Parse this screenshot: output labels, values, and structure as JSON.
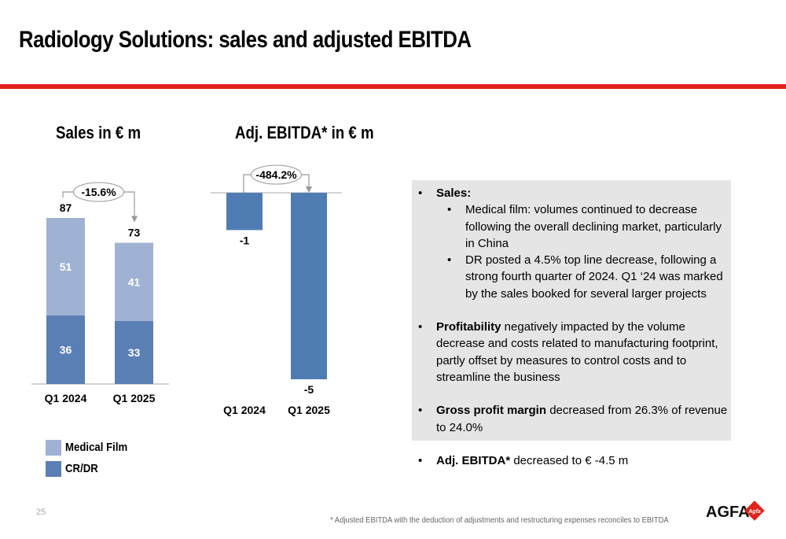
{
  "slide": {
    "title": "Radiology Solutions: sales and adjusted EBITDA",
    "page_number": "25",
    "footnote": "* Adjusted EBITDA with the deduction of adjustments and restructuring expenses reconciles to EBITDA",
    "logo": {
      "text": "AGFA",
      "badge": "Agfa"
    }
  },
  "colors": {
    "accent_red": "#e2231a",
    "medical_film": "#9fb2d3",
    "cr_dr": "#5a7fb5",
    "ebitda_bar": "#4f7db3",
    "panel_bg": "#e5e5e5"
  },
  "chart_data": [
    {
      "type": "bar",
      "stacked": true,
      "title": "Sales in € m",
      "categories": [
        "Q1 2024",
        "Q1 2025"
      ],
      "series": [
        {
          "name": "CR/DR",
          "values": [
            36,
            33
          ],
          "color": "#5a7fb5"
        },
        {
          "name": "Medical Film",
          "values": [
            51,
            41
          ],
          "color": "#9fb2d3"
        }
      ],
      "totals": [
        87,
        73
      ],
      "change_label": "-15.6%",
      "legend": [
        "Medical Film",
        "CR/DR"
      ],
      "legend_position": "bottom-left",
      "ylim": [
        0,
        95
      ]
    },
    {
      "type": "bar",
      "title": "Adj. EBITDA* in € m",
      "categories": [
        "Q1 2024",
        "Q1 2025"
      ],
      "values": [
        -1,
        -5
      ],
      "value_labels": [
        "-1",
        "-5"
      ],
      "change_label": "-484.2%",
      "ylim": [
        -5.4,
        0
      ]
    }
  ],
  "bullets": [
    {
      "bold": "Sales:",
      "text": "",
      "sub": [
        "Medical film: volumes continued to decrease following the overall declining market, particularly in China",
        "DR posted a 4.5% top line decrease, following a strong fourth quarter of 2024. Q1 ‘24 was marked by the sales booked for several larger projects"
      ]
    },
    {
      "bold": "Profitability",
      "text": " negatively impacted by the volume decrease and costs related to manufacturing footprint, partly offset by measures to control costs and to streamline the business",
      "sub": []
    },
    {
      "bold": "Gross profit margin",
      "text": " decreased from 26.3% of revenue to 24.0%",
      "sub": []
    },
    {
      "bold": "Adj. EBITDA*",
      "text": " decreased to € -4.5 m",
      "sub": []
    }
  ]
}
